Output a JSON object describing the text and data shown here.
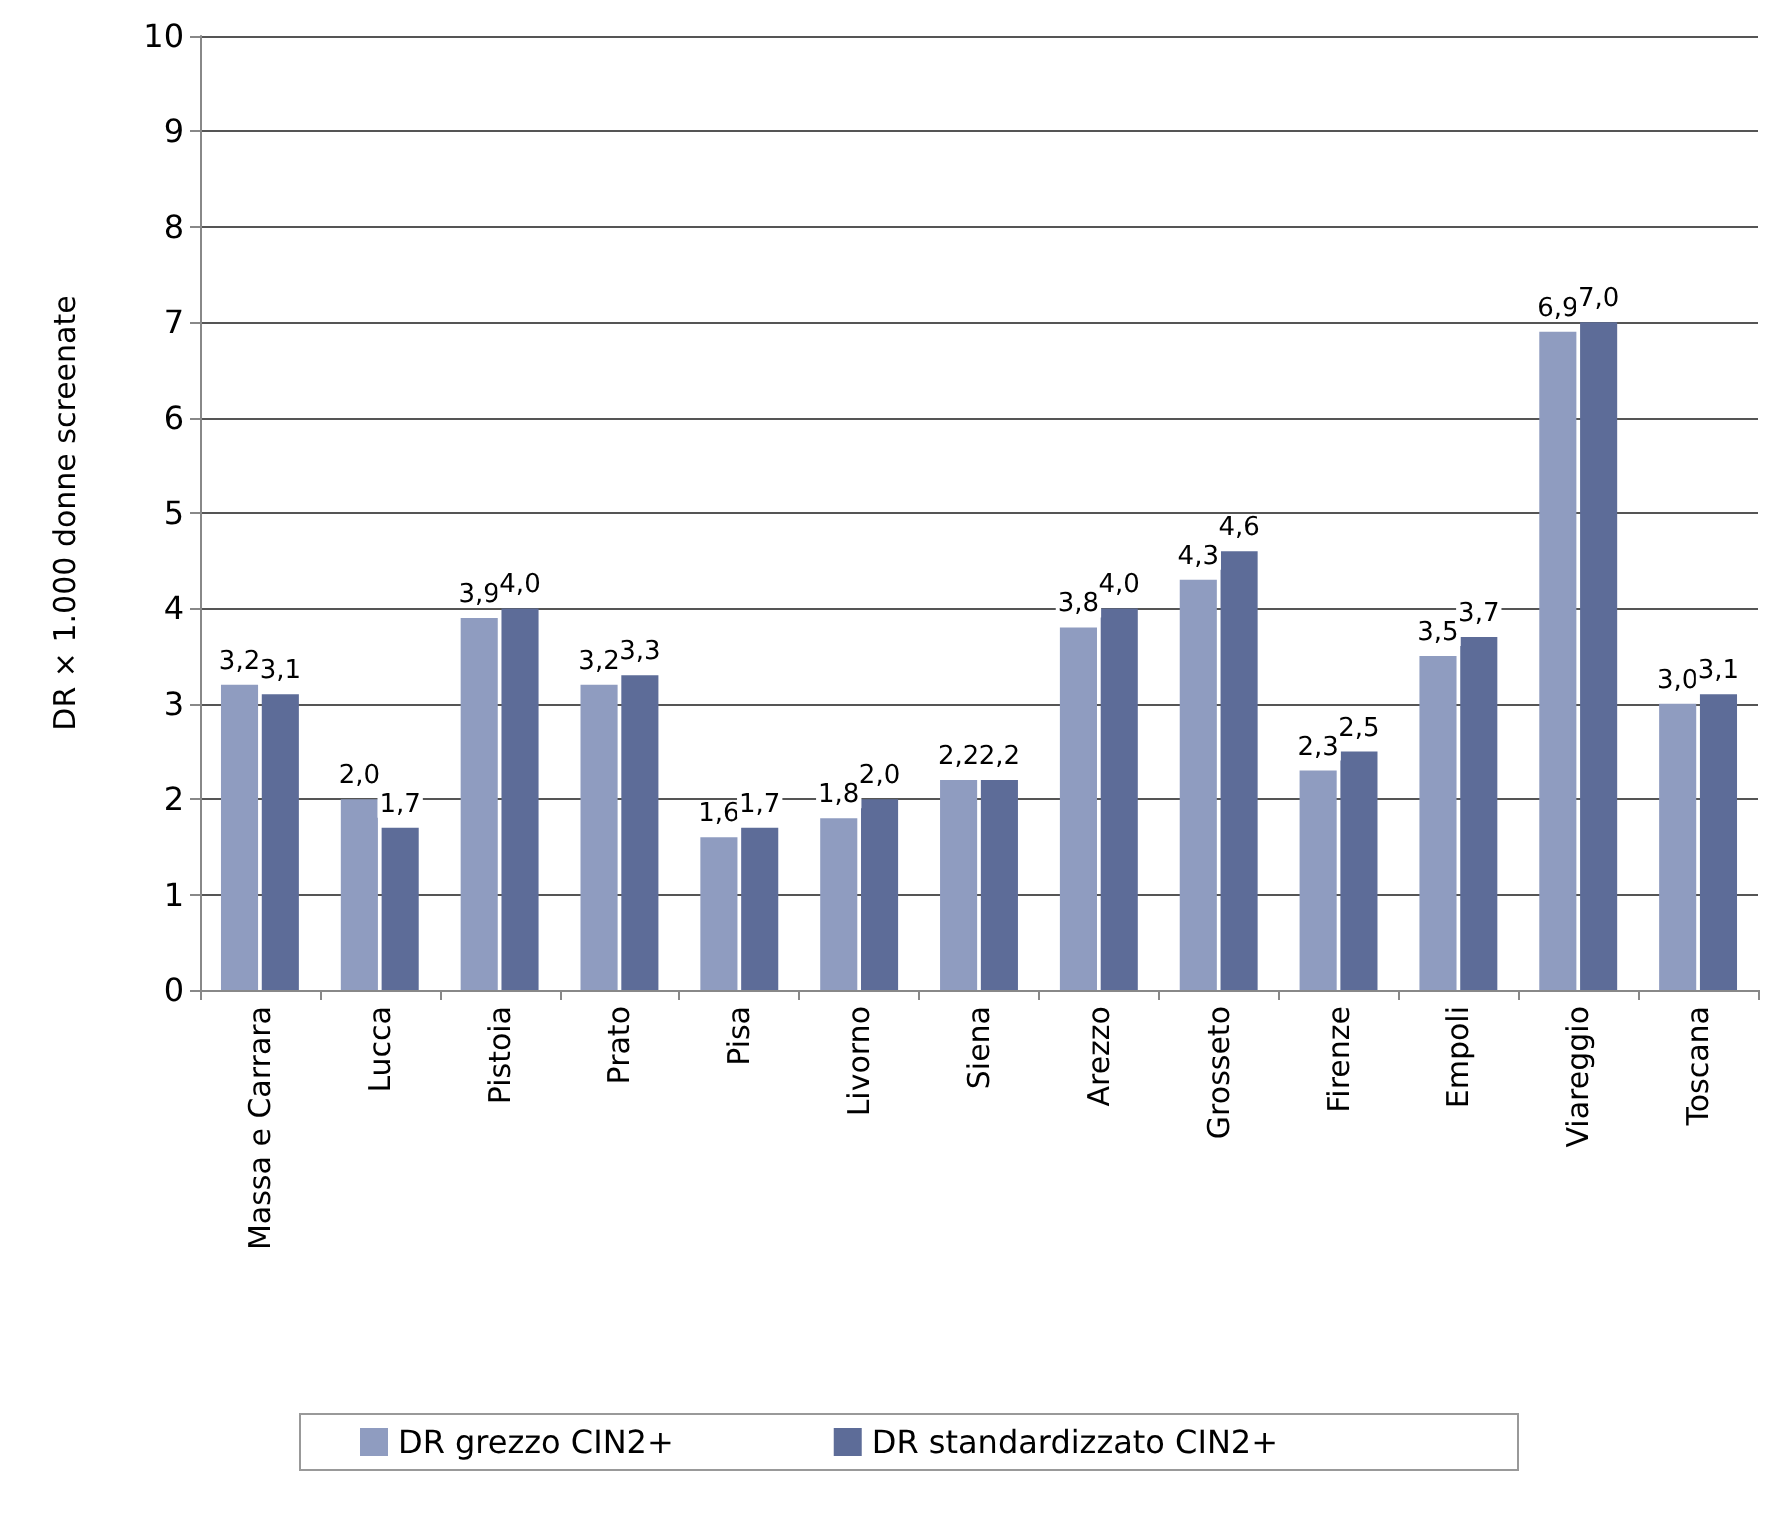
{
  "chart_data": {
    "type": "bar",
    "ylabel": "DR × 1.000 donne screenate",
    "categories": [
      "Massa e Carrara",
      "Lucca",
      "Pistoia",
      "Prato",
      "Pisa",
      "Livorno",
      "Siena",
      "Arezzo",
      "Grosseto",
      "Firenze",
      "Empoli",
      "Viareggio",
      "Toscana"
    ],
    "series": [
      {
        "name": "DR grezzo CIN2+",
        "color": "#8f9cc0",
        "values": [
          3.2,
          2.0,
          3.9,
          3.2,
          1.6,
          1.8,
          2.2,
          3.8,
          4.3,
          2.3,
          3.5,
          6.9,
          3.0
        ],
        "value_labels": [
          "3,2",
          "2,0",
          "3,9",
          "3,2",
          "1,6",
          "1,8",
          "2,2",
          "3,8",
          "4,3",
          "2,3",
          "3,5",
          "6,9",
          "3,0"
        ]
      },
      {
        "name": "DR standardizzato CIN2+",
        "color": "#5d6c98",
        "values": [
          3.1,
          1.7,
          4.0,
          3.3,
          1.7,
          2.0,
          2.2,
          4.0,
          4.6,
          2.5,
          3.7,
          7.0,
          3.1
        ],
        "value_labels": [
          "3,1",
          "1,7",
          "4,0",
          "3,3",
          "1,7",
          "2,0",
          "2,2",
          "4,0",
          "4,6",
          "2,5",
          "3,7",
          "7,0",
          "3,1"
        ]
      }
    ],
    "ylim": [
      0,
      10
    ],
    "yticks": [
      0,
      1,
      2,
      3,
      4,
      5,
      6,
      7,
      8,
      9,
      10
    ],
    "grid": "y",
    "legend": "bottom"
  }
}
